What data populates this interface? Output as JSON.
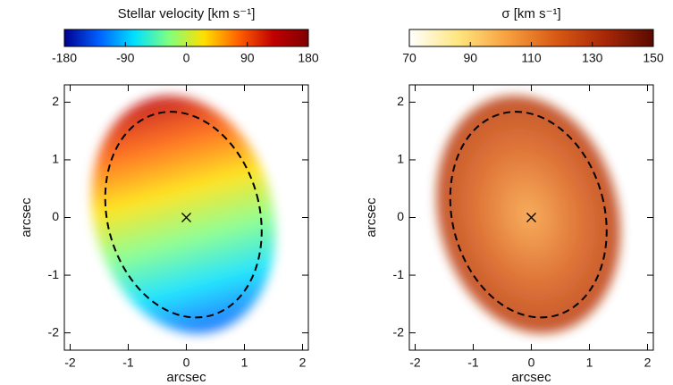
{
  "chart_data": [
    {
      "type": "map",
      "title": "Stellar velocity [km s⁻¹]",
      "clim": [
        -180,
        180
      ],
      "cticks": [
        -180,
        -90,
        0,
        90,
        180
      ],
      "colormap": [
        "#00008f",
        "#0060ff",
        "#00e0ff",
        "#80ff80",
        "#ffe000",
        "#ff6000",
        "#c00000",
        "#800000"
      ],
      "xlabel": "arcsec",
      "ylabel": "arcsec",
      "xlim": [
        -2.1,
        2.1
      ],
      "ylim": [
        -2.3,
        2.3
      ],
      "xticks": [
        -2,
        -1,
        0,
        1,
        2
      ],
      "yticks": [
        -2,
        -1,
        0,
        1,
        2
      ]
    },
    {
      "type": "map",
      "title": "σ [km s⁻¹]",
      "clim": [
        70,
        150
      ],
      "cticks": [
        70,
        90,
        110,
        130,
        150
      ],
      "colormap": [
        "#ffffff",
        "#ffe680",
        "#f7a040",
        "#d85a14",
        "#a82808",
        "#5a0a00"
      ],
      "xlabel": "arcsec",
      "ylabel": "arcsec",
      "xlim": [
        -2.1,
        2.1
      ],
      "ylim": [
        -2.3,
        2.3
      ],
      "xticks": [
        -2,
        -1,
        0,
        1,
        2
      ],
      "yticks": [
        -2,
        -1,
        0,
        1,
        2
      ]
    }
  ]
}
